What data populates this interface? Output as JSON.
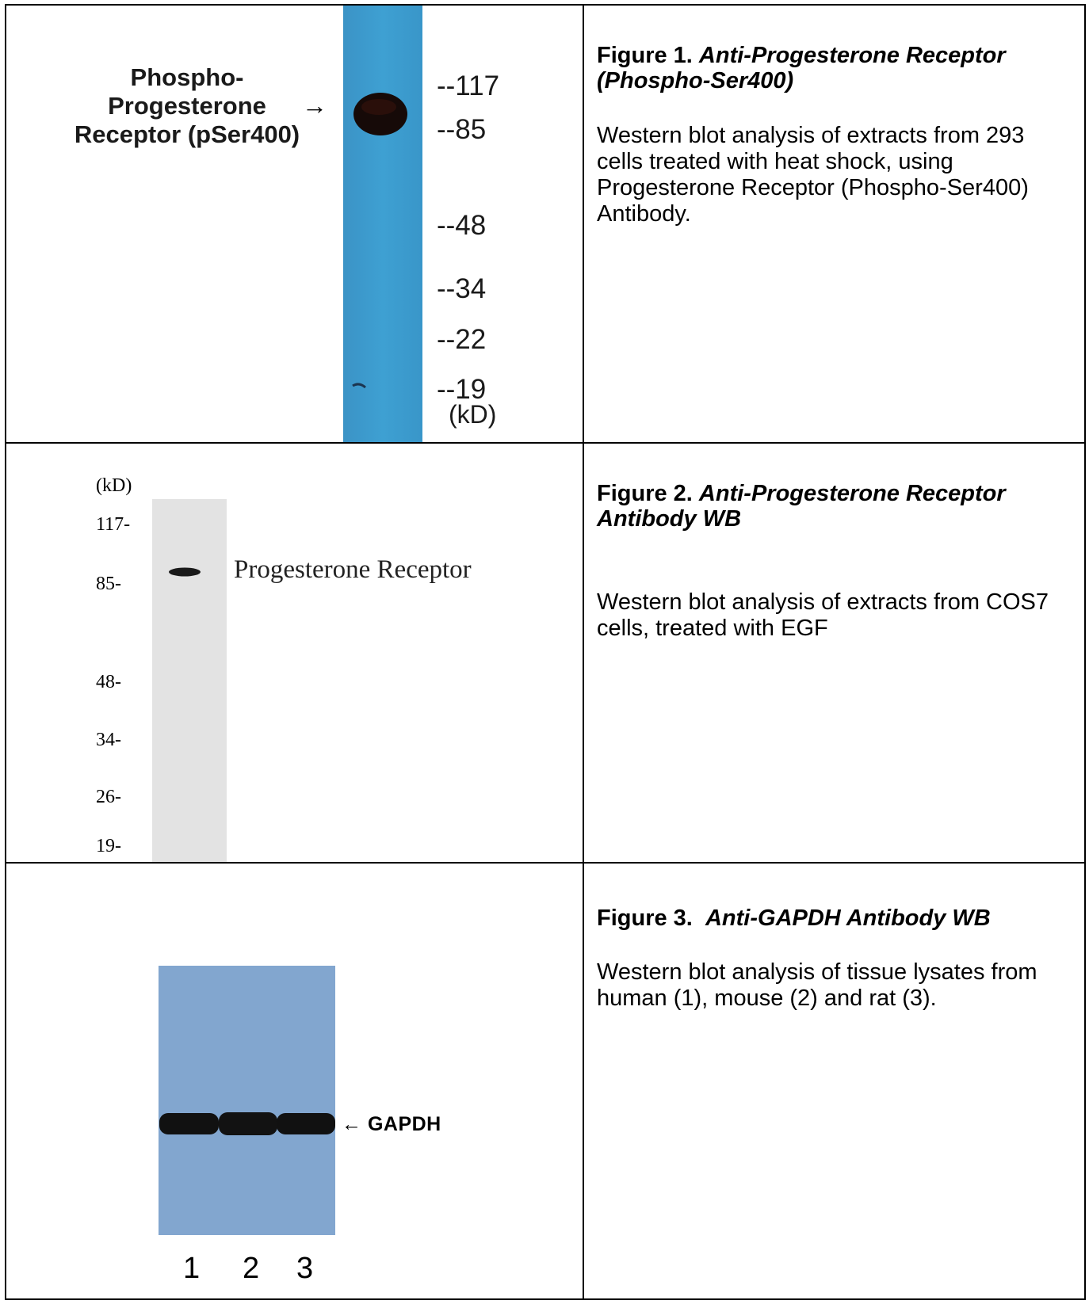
{
  "figures": [
    {
      "title_prefix": "Figure 1.",
      "title_italic": "Anti-Progesterone Receptor (Phospho-Ser400)",
      "description": "Western blot analysis of extracts from 293 cells treated with heat shock, using Progesterone Receptor (Phospho-Ser400) Antibody.",
      "blot": {
        "label_lines": [
          "Phospho-",
          "Progesterone",
          "Receptor (pSer400)"
        ],
        "arrow": "→",
        "markers": [
          "--117",
          "--85",
          "--48",
          "--34",
          "--22",
          "--19"
        ],
        "unit": "(kD)",
        "membrane_color": "#3a9ccc"
      }
    },
    {
      "title_prefix": "Figure 2.",
      "title_italic": "Anti-Progesterone Receptor Antibody WB",
      "description": "Western blot analysis of extracts from COS7 cells, treated with EGF",
      "blot": {
        "unit": "(kD)",
        "markers": [
          "117-",
          "85-",
          "48-",
          "34-",
          "26-",
          "19-"
        ],
        "band_label": "Progesterone Receptor",
        "membrane_color": "#e4e4e4"
      }
    },
    {
      "title_prefix": "Figure 3.",
      "title_italic": "Anti-GAPDH Antibody WB",
      "description": "Western blot analysis of tissue lysates from human (1), mouse (2) and rat (3).",
      "blot": {
        "band_label": "GAPDH",
        "arrow": "←",
        "lanes": [
          "1",
          "2",
          "3"
        ],
        "membrane_color": "#82a6cf"
      }
    }
  ]
}
